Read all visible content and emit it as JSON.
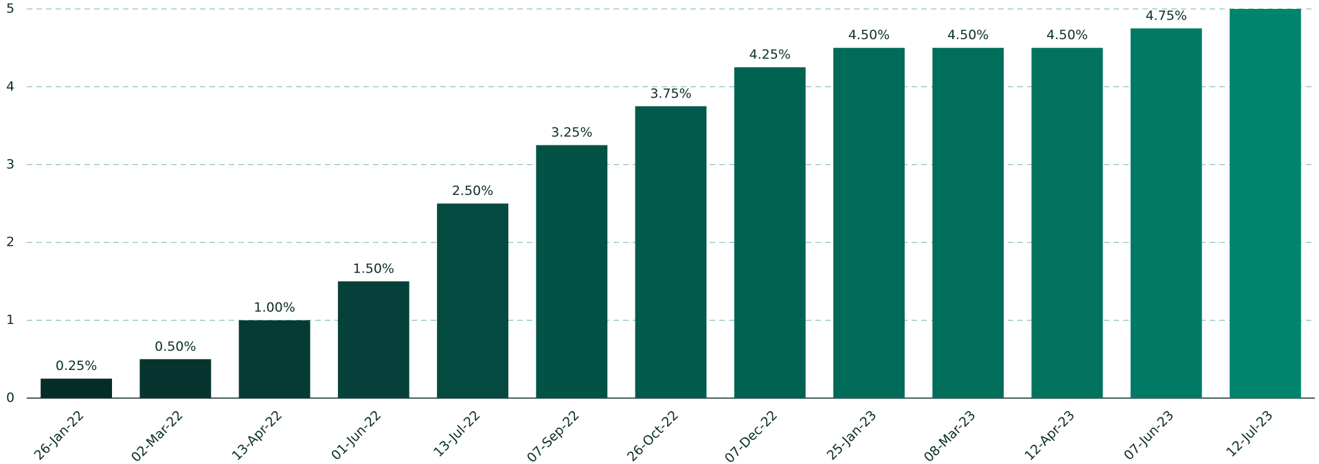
{
  "chart_data": {
    "type": "bar",
    "categories": [
      "26-Jan-22",
      "02-Mar-22",
      "13-Apr-22",
      "01-Jun-22",
      "13-Jul-22",
      "07-Sep-22",
      "26-Oct-22",
      "07-Dec-22",
      "25-Jan-23",
      "08-Mar-23",
      "12-Apr-23",
      "07-Jun-23",
      "12-Jul-23"
    ],
    "values": [
      0.25,
      0.5,
      1.0,
      1.5,
      2.5,
      3.25,
      3.75,
      4.25,
      4.5,
      4.5,
      4.5,
      4.75,
      5.0
    ],
    "value_labels": [
      "0.25%",
      "0.50%",
      "1.00%",
      "1.50%",
      "2.50%",
      "3.25%",
      "3.75%",
      "4.25%",
      "4.50%",
      "4.50%",
      "4.50%",
      "4.75%",
      null
    ],
    "colors": [
      "#052c29",
      "#063530",
      "#063b35",
      "#05413a",
      "#044a40",
      "#035246",
      "#025a4c",
      "#026252",
      "#016a58",
      "#016e5b",
      "#01735f",
      "#007a64",
      "#00846d"
    ],
    "ylim": [
      0,
      5
    ],
    "yticks": [
      0,
      1,
      2,
      3,
      4,
      5
    ],
    "grid": true
  }
}
